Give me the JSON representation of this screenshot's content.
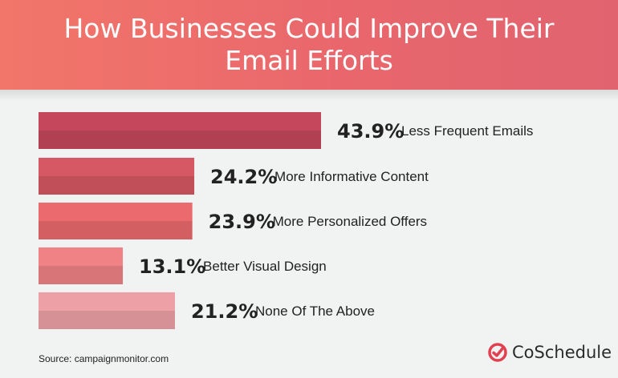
{
  "header": {
    "title": "How Businesses Could Improve Their Email Efforts"
  },
  "chart_data": {
    "type": "bar",
    "orientation": "horizontal",
    "title": "How Businesses Could Improve Their Email Efforts",
    "xlabel": "",
    "ylabel": "",
    "xlim": [
      0,
      50
    ],
    "grid": false,
    "categories": [
      "Less Frequent Emails",
      "More Informative Content",
      "More Personalized Offers",
      "Better Visual Design",
      "None Of The Above"
    ],
    "values": [
      43.9,
      24.2,
      23.9,
      13.1,
      21.2
    ],
    "value_labels": [
      "43.9%",
      "24.2%",
      "23.9%",
      "13.1%",
      "21.2%"
    ],
    "colors": [
      "#c4475b",
      "#d55864",
      "#ea6a6d",
      "#f08286",
      "#eda1a6"
    ]
  },
  "footer": {
    "source": "Source: campaignmonitor.com",
    "brand": "CoSchedule",
    "brand_color": "#e2404f",
    "brand_icon": "check-circle-icon"
  }
}
